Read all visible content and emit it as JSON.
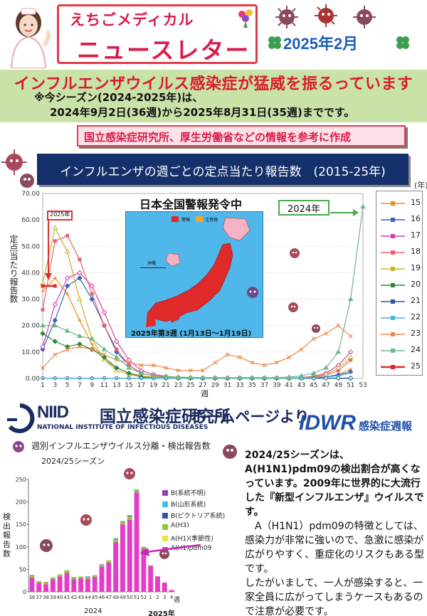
{
  "header": {
    "title_small": "えちごメディカル",
    "title_big": "ニュースレター",
    "date": "2025年2月"
  },
  "headline": {
    "main": "インフルエンザウイルス感染症が猛威を振るっています",
    "note_line1": "※今シーズン(2024-2025年)は、",
    "note_line2": "2024年9月2日(36週)から2025年8月31日(35週)までです。"
  },
  "source": "国立感染症研究所、厚生労働省などの情報を参考に作成",
  "chart": {
    "title": "インフルエンザの週ごとの定点当たり報告数　(2015-25年)",
    "year_unit": "(年)",
    "ylabel": "定点当たり報告数",
    "xlabel": "週",
    "map_banner": "日本全国警報発令中",
    "map_caption": "2025年第3週 (1月13日～1月19日)",
    "map_legend_a": "警報",
    "map_legend_b": "注意報",
    "map_okinawa": "沖縄",
    "label_2024": "2024年",
    "label_2025": "2025年"
  },
  "chart_data": {
    "type": "line",
    "title": "インフルエンザの週ごとの定点当たり報告数 (2015-25年)",
    "xlabel": "週",
    "ylabel": "定点当たり報告数",
    "ylim": [
      0,
      70
    ],
    "yticks": [
      "0.00",
      "10.00",
      "20.00",
      "30.00",
      "40.00",
      "50.00",
      "60.00",
      "70.00"
    ],
    "x": [
      1,
      3,
      5,
      7,
      9,
      11,
      13,
      15,
      17,
      19,
      21,
      23,
      25,
      27,
      29,
      31,
      33,
      35,
      37,
      39,
      41,
      43,
      45,
      47,
      49,
      51,
      53
    ],
    "series": [
      {
        "name": "15",
        "color": "#f28a1e",
        "values": [
          33,
          38,
          32,
          22,
          13,
          7,
          4,
          2,
          1,
          0.5,
          0.3,
          0.2,
          0.1,
          0.1,
          0.1,
          0.1,
          0.1,
          0.1,
          0.1,
          0.1,
          0.1,
          0.2,
          0.3,
          0.6,
          1.5,
          3.5,
          null
        ]
      },
      {
        "name": "16",
        "color": "#3a63b8",
        "values": [
          11,
          22,
          35,
          38,
          30,
          20,
          10,
          5,
          2,
          1,
          0.5,
          0.3,
          0.2,
          0.1,
          0.1,
          0.1,
          0.1,
          0.1,
          0.1,
          0.1,
          0.1,
          0.2,
          0.3,
          0.6,
          1.3,
          2.5,
          null
        ]
      },
      {
        "name": "17",
        "color": "#d23fa8",
        "values": [
          12,
          28,
          38,
          40,
          35,
          25,
          14,
          7,
          3,
          1.5,
          0.8,
          0.4,
          0.2,
          0.1,
          0.1,
          0.1,
          0.1,
          0.1,
          0.1,
          0.1,
          0.2,
          0.3,
          0.8,
          2,
          5,
          10,
          null
        ]
      },
      {
        "name": "18",
        "color": "#e8636b",
        "values": [
          26,
          52,
          54,
          45,
          32,
          20,
          11,
          5,
          2,
          1,
          0.5,
          0.3,
          0.2,
          0.1,
          0.1,
          0.1,
          0.1,
          0.1,
          0.1,
          0.1,
          0.1,
          0.2,
          0.5,
          1.2,
          3,
          7,
          null
        ]
      },
      {
        "name": "19",
        "color": "#c9b02e",
        "values": [
          36,
          57,
          48,
          30,
          15,
          7,
          3,
          1.5,
          0.8,
          0.4,
          0.2,
          0.1,
          0.1,
          0.1,
          0.1,
          0.1,
          0.1,
          0.1,
          0.1,
          0.1,
          0.1,
          0.2,
          0.6,
          1.5,
          4,
          8,
          null
        ]
      },
      {
        "name": "20",
        "color": "#2a8a3a",
        "values": [
          17,
          14,
          12,
          13,
          11,
          8,
          4,
          2,
          0.5,
          0.2,
          0.1,
          0.1,
          0.1,
          0.1,
          0.1,
          0.1,
          0.1,
          0.1,
          0.1,
          0.1,
          0.1,
          0.1,
          0.1,
          0.1,
          0.1,
          0.1,
          null
        ]
      },
      {
        "name": "21",
        "color": "#2a58a8",
        "values": [
          0.1,
          0.1,
          0.1,
          0.1,
          0.1,
          0.1,
          0.1,
          0.1,
          0.1,
          0.1,
          0.1,
          0.1,
          0.1,
          0.1,
          0.1,
          0.1,
          0.1,
          0.1,
          0.1,
          0.1,
          0.1,
          0.1,
          0.1,
          0.1,
          0.1,
          0.1,
          null
        ]
      },
      {
        "name": "22",
        "color": "#3cb8d8",
        "values": [
          0.1,
          0.1,
          0.1,
          0.1,
          0.1,
          0.1,
          0.1,
          0.1,
          0.1,
          0.1,
          0.1,
          0.1,
          0.1,
          0.1,
          0.1,
          0.1,
          0.1,
          0.1,
          0.1,
          0.1,
          0.1,
          0.2,
          0.3,
          0.5,
          1,
          2,
          null
        ]
      },
      {
        "name": "23",
        "color": "#e8884a",
        "values": [
          4,
          9,
          11,
          12,
          11,
          9,
          7,
          6,
          5,
          5,
          4,
          3,
          3,
          3,
          6,
          9,
          8,
          6,
          5,
          6,
          8,
          11,
          15,
          17,
          20,
          16,
          null
        ]
      },
      {
        "name": "24",
        "color": "#6ab78a",
        "values": [
          20,
          20,
          18,
          16,
          15,
          11,
          8,
          4,
          2,
          1,
          0.7,
          0.5,
          0.4,
          0.3,
          0.3,
          0.3,
          0.3,
          0.3,
          0.3,
          0.3,
          0.5,
          1,
          2,
          4,
          10,
          30,
          65
        ]
      },
      {
        "name": "25",
        "color": "#e02a2a",
        "values": [
          35,
          35,
          null,
          null,
          null,
          null,
          null,
          null,
          null,
          null,
          null,
          null,
          null,
          null,
          null,
          null,
          null,
          null,
          null,
          null,
          null,
          null,
          null,
          null,
          null,
          null,
          null
        ]
      }
    ]
  },
  "niid": {
    "logo_text": "NIID",
    "name_jp": "国立感染症研究所",
    "name_en": "NATIONAL INSTITUTE OF INFECTIOUS DISEASES",
    "homepage": "ホームページより",
    "idwr": "IDWR",
    "idwr_jp": "感染症週報"
  },
  "lower_chart": {
    "title": "週別インフルエンザウイルス分離・検出報告数",
    "subtitle": "2024/25シーズン",
    "ylabel": "検出報告数",
    "year1": "2024",
    "year2": "2025年",
    "unit": "週"
  },
  "lower_chart_data": {
    "type": "bar",
    "categories": [
      "36",
      "37",
      "38",
      "39",
      "40",
      "41",
      "42",
      "43",
      "44",
      "45",
      "46",
      "47",
      "48",
      "49",
      "50",
      "51",
      "52",
      "1",
      "2",
      "3",
      "4"
    ],
    "ylim": [
      0,
      250
    ],
    "yticks": [
      "0",
      "50",
      "100",
      "150",
      "200",
      "250"
    ],
    "series": [
      {
        "name": "B(系統不明)",
        "color": "#9b3fb5",
        "values": [
          0,
          0,
          0,
          0,
          0,
          0,
          0,
          0,
          0,
          0,
          0,
          0,
          0,
          0,
          0,
          0,
          0,
          0,
          0,
          0,
          0
        ]
      },
      {
        "name": "B(山形系統)",
        "color": "#3cc0e0",
        "values": [
          0,
          0,
          0,
          0,
          0,
          0,
          0,
          0,
          0,
          0,
          0,
          0,
          0,
          0,
          0,
          0,
          0,
          0,
          0,
          0,
          0
        ]
      },
      {
        "name": "B(ビクトリア系統)",
        "color": "#3a4fb0",
        "values": [
          0,
          0,
          0,
          0,
          0,
          0,
          0,
          0,
          1,
          0,
          1,
          0,
          1,
          1,
          2,
          1,
          1,
          0,
          0,
          0,
          0
        ]
      },
      {
        "name": "A(H3)",
        "color": "#8cc83c",
        "values": [
          6,
          4,
          5,
          4,
          5,
          6,
          5,
          4,
          4,
          4,
          4,
          5,
          8,
          6,
          8,
          5,
          3,
          2,
          1,
          1,
          0
        ]
      },
      {
        "name": "A(H1)(季節性)",
        "color": "#f0e040",
        "values": [
          0,
          0,
          0,
          0,
          0,
          0,
          0,
          0,
          0,
          0,
          0,
          0,
          0,
          0,
          0,
          0,
          0,
          0,
          0,
          0,
          0
        ]
      },
      {
        "name": "A(H1)pdm09",
        "color": "#e43cc8",
        "values": [
          32,
          20,
          17,
          28,
          34,
          42,
          28,
          30,
          29,
          33,
          56,
          65,
          110,
          150,
          160,
          221,
          96,
          57,
          34,
          20,
          4
        ]
      }
    ]
  },
  "explain": {
    "p1": "2024/25シーズンは、A(H1N1)pdm09の検出割合が高くなっています。2009年に世界的に大流行した『新型インフルエンザ』ウイルスです。",
    "p2": "A（H1N1）pdm09の特徴としては、感染力が非常に強いので、急激に感染が広がりやすく、重症化のリスクもある型です。",
    "p3": "したがいまして、一人が感染すると、一家全員に広がってしまうケースもあるので注意が必要です。"
  }
}
